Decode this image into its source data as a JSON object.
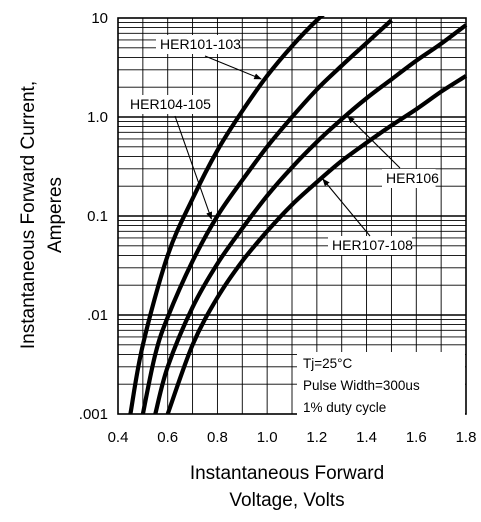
{
  "chart_data": {
    "type": "line",
    "xscale": "linear",
    "yscale": "log",
    "xlim": [
      0.4,
      1.8
    ],
    "ylim": [
      0.001,
      10
    ],
    "grid": true,
    "x_ticks": [
      {
        "value": 0.4,
        "label": "0.4"
      },
      {
        "value": 0.6,
        "label": "0.6"
      },
      {
        "value": 0.8,
        "label": "0.8"
      },
      {
        "value": 1.0,
        "label": "1.0"
      },
      {
        "value": 1.2,
        "label": "1.2"
      },
      {
        "value": 1.4,
        "label": "1.4"
      },
      {
        "value": 1.6,
        "label": "1.6"
      },
      {
        "value": 1.8,
        "label": "1.8"
      }
    ],
    "y_ticks": [
      {
        "value": 10,
        "label": "10"
      },
      {
        "value": 1,
        "label": "1.0"
      },
      {
        "value": 0.1,
        "label": "0.1"
      },
      {
        "value": 0.01,
        "label": ".01"
      },
      {
        "value": 0.001,
        "label": ".001"
      }
    ],
    "xlabel_lines": [
      "Instantaneous Forward",
      "Voltage, Volts"
    ],
    "ylabel_lines": [
      "Instantaneous Forward Current,",
      "Amperes"
    ],
    "series": [
      {
        "name": "HER101-103",
        "x": [
          0.45,
          0.5,
          0.6,
          0.7,
          0.8,
          0.9,
          1.0,
          1.1,
          1.2,
          1.25
        ],
        "y": [
          0.001,
          0.005,
          0.04,
          0.15,
          0.46,
          1.15,
          2.6,
          5.2,
          9.5,
          12
        ]
      },
      {
        "name": "HER104-105",
        "x": [
          0.5,
          0.55,
          0.6,
          0.7,
          0.8,
          0.9,
          1.0,
          1.1,
          1.2,
          1.3,
          1.4,
          1.5
        ],
        "y": [
          0.001,
          0.004,
          0.0095,
          0.035,
          0.1,
          0.23,
          0.5,
          1.0,
          1.9,
          3.3,
          5.6,
          9.5
        ]
      },
      {
        "name": "HER106",
        "x": [
          0.55,
          0.6,
          0.7,
          0.8,
          0.9,
          1.0,
          1.1,
          1.2,
          1.3,
          1.4,
          1.5,
          1.6,
          1.7,
          1.8
        ],
        "y": [
          0.001,
          0.003,
          0.012,
          0.033,
          0.075,
          0.16,
          0.31,
          0.56,
          0.95,
          1.55,
          2.4,
          3.7,
          5.5,
          8.5
        ]
      },
      {
        "name": "HER107-108",
        "x": [
          0.6,
          0.7,
          0.8,
          0.9,
          1.0,
          1.1,
          1.2,
          1.3,
          1.4,
          1.5,
          1.6,
          1.7,
          1.8
        ],
        "y": [
          0.001,
          0.005,
          0.015,
          0.035,
          0.07,
          0.13,
          0.22,
          0.36,
          0.55,
          0.82,
          1.2,
          1.8,
          2.6
        ]
      }
    ],
    "conditions": [
      "Tj=25°C",
      "Pulse Width=300us",
      "1% duty cycle"
    ]
  }
}
